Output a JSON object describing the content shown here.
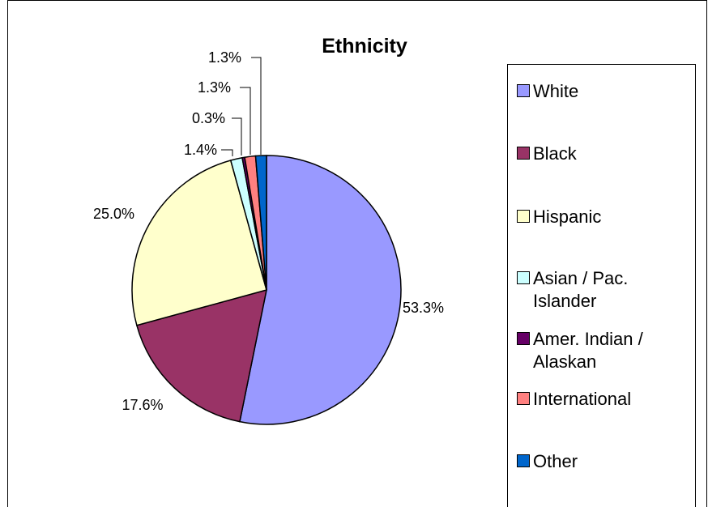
{
  "chart_data": {
    "type": "pie",
    "title": "Ethnicity",
    "categories": [
      "White",
      "Black",
      "Hispanic",
      "Asian / Pac. Islander",
      "Amer. Indian / Alaskan",
      "International",
      "Other"
    ],
    "values": [
      53.3,
      17.6,
      25.0,
      1.4,
      0.3,
      1.3,
      1.3
    ],
    "data_labels": [
      "53.3%",
      "17.6%",
      "25.0%",
      "1.4%",
      "0.3%",
      "1.3%",
      "1.3%"
    ],
    "colors": [
      "#9999ff",
      "#993366",
      "#ffffcc",
      "#ccffff",
      "#660066",
      "#ff8080",
      "#0066cc"
    ],
    "legend": {
      "placement": "right",
      "labels": [
        "White",
        "Black",
        "Hispanic",
        "Asian / Pac.\nIslander",
        "Amer. Indian /\nAlaskan",
        "International",
        "Other"
      ]
    }
  }
}
